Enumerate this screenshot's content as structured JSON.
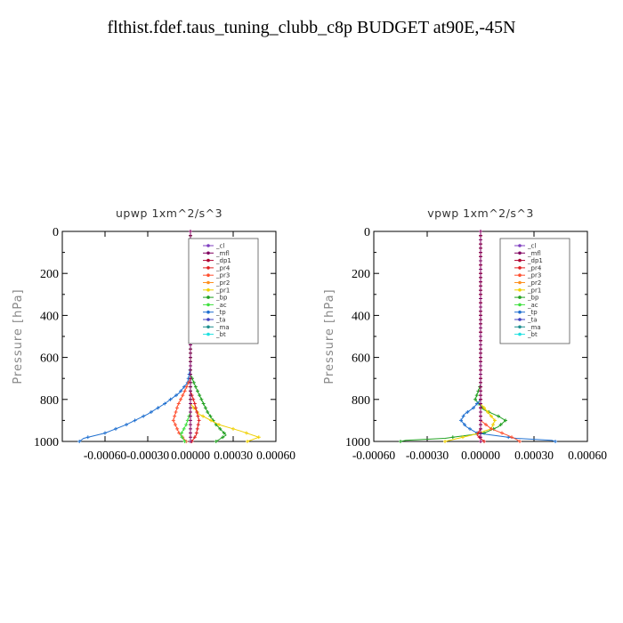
{
  "page_title": "flthist.fdef.taus_tuning_clubb_c8p  BUDGET at90E,-45N",
  "colors": {
    "cl": "#8040c0",
    "mfl": "#800060",
    "dp1": "#b00030",
    "pr4": "#e02020",
    "pr3": "#ff5030",
    "pr2": "#ff9020",
    "pr1": "#f0d000",
    "bp": "#20a020",
    "ac": "#40e040",
    "tp": "#2070d0",
    "ta": "#4040c0",
    "ma": "#209090",
    "bt": "#20e0e0"
  },
  "chart_data": [
    {
      "type": "line",
      "title": "upwp   1xm^2/s^3",
      "ylabel": "Pressure [hPa]",
      "ylim": [
        1000,
        0
      ],
      "xlim": [
        -0.0009,
        0.0006
      ],
      "y_ticks": [
        "0",
        "200",
        "400",
        "600",
        "800",
        "1000"
      ],
      "x_ticks": [
        "-0.00060",
        "-0.00030",
        "0.00000",
        "0.00030",
        "0.00060"
      ],
      "legend": [
        "_cl",
        "_mfl",
        "_dp1",
        "_pr4",
        "_pr3",
        "_pr2",
        "_pr1",
        "_bp",
        "_ac",
        "_tp",
        "_ta",
        "_ma",
        "_bt"
      ],
      "series": [
        {
          "name": "_tp",
          "color": "#2070d0",
          "points": [
            [
              0,
              0
            ],
            [
              0,
              650
            ],
            [
              -2e-05,
              720
            ],
            [
              -8e-05,
              770
            ],
            [
              -0.00018,
              820
            ],
            [
              -0.0003,
              870
            ],
            [
              -0.00045,
              920
            ],
            [
              -0.0006,
              960
            ],
            [
              -0.00075,
              985
            ],
            [
              -0.00078,
              1000
            ]
          ]
        },
        {
          "name": "_bp",
          "color": "#20a020",
          "points": [
            [
              0,
              0
            ],
            [
              0,
              680
            ],
            [
              3e-05,
              730
            ],
            [
              7e-05,
              790
            ],
            [
              0.00012,
              860
            ],
            [
              0.00018,
              920
            ],
            [
              0.00025,
              970
            ],
            [
              0.00018,
              1000
            ]
          ]
        },
        {
          "name": "_pr1",
          "color": "#f0d000",
          "points": [
            [
              0,
              0
            ],
            [
              0,
              820
            ],
            [
              6e-05,
              870
            ],
            [
              0.0002,
              920
            ],
            [
              0.00035,
              950
            ],
            [
              0.00048,
              980
            ],
            [
              0.0004,
              1000
            ]
          ]
        },
        {
          "name": "_pr3",
          "color": "#ff5030",
          "points": [
            [
              0,
              0
            ],
            [
              0,
              700
            ],
            [
              -4e-05,
              760
            ],
            [
              -9e-05,
              830
            ],
            [
              -0.00012,
              900
            ],
            [
              -8e-05,
              960
            ],
            [
              -3e-05,
              1000
            ]
          ]
        },
        {
          "name": "_pr4",
          "color": "#e02020",
          "points": [
            [
              0,
              0
            ],
            [
              0,
              760
            ],
            [
              3e-05,
              820
            ],
            [
              6e-05,
              900
            ],
            [
              4e-05,
              970
            ],
            [
              1e-05,
              1000
            ]
          ]
        },
        {
          "name": "_ac",
          "color": "#40e040",
          "points": [
            [
              0,
              0
            ],
            [
              0,
              860
            ],
            [
              -3e-05,
              920
            ],
            [
              -7e-05,
              970
            ],
            [
              -4e-05,
              1000
            ]
          ]
        },
        {
          "name": "_mfl",
          "color": "#800060",
          "points": [
            [
              0,
              0
            ],
            [
              0,
              1000
            ]
          ]
        }
      ]
    },
    {
      "type": "line",
      "title": "vpwp   1xm^2/s^3",
      "ylabel": "Pressure [hPa]",
      "ylim": [
        1000,
        0
      ],
      "xlim": [
        -0.0006,
        0.0006
      ],
      "y_ticks": [
        "0",
        "200",
        "400",
        "600",
        "800",
        "1000"
      ],
      "x_ticks": [
        "-0.00060",
        "-0.00030",
        "0.00000",
        "0.00030",
        "0.00060"
      ],
      "legend": [
        "_cl",
        "_mfl",
        "_dp1",
        "_pr4",
        "_pr3",
        "_pr2",
        "_pr1",
        "_bp",
        "_ac",
        "_tp",
        "_ta",
        "_ma",
        "_bt"
      ],
      "series": [
        {
          "name": "_bp",
          "color": "#20a020",
          "points": [
            [
              0,
              0
            ],
            [
              0,
              730
            ],
            [
              -3e-05,
              800
            ],
            [
              2e-05,
              850
            ],
            [
              0.0001,
              880
            ],
            [
              0.00014,
              900
            ],
            [
              0.0001,
              930
            ],
            [
              2e-05,
              960
            ],
            [
              -0.0002,
              985
            ],
            [
              -0.00042,
              995
            ],
            [
              -0.00045,
              1000
            ]
          ]
        },
        {
          "name": "_tp",
          "color": "#2070d0",
          "points": [
            [
              0,
              0
            ],
            [
              0,
              800
            ],
            [
              -4e-05,
              840
            ],
            [
              -9e-05,
              870
            ],
            [
              -0.00011,
              900
            ],
            [
              -8e-05,
              930
            ],
            [
              -2e-05,
              960
            ],
            [
              0.0002,
              985
            ],
            [
              0.0004,
              995
            ],
            [
              0.00042,
              1000
            ]
          ]
        },
        {
          "name": "_pr1",
          "color": "#f0d000",
          "points": [
            [
              0,
              0
            ],
            [
              0,
              820
            ],
            [
              4e-05,
              860
            ],
            [
              8e-05,
              900
            ],
            [
              6e-05,
              940
            ],
            [
              -5e-05,
              970
            ],
            [
              -0.00015,
              990
            ],
            [
              -0.0002,
              1000
            ]
          ]
        },
        {
          "name": "_pr3",
          "color": "#ff5030",
          "points": [
            [
              0,
              0
            ],
            [
              0,
              900
            ],
            [
              6e-05,
              940
            ],
            [
              0.00015,
              970
            ],
            [
              0.0002,
              990
            ],
            [
              0.00022,
              1000
            ]
          ]
        },
        {
          "name": "_pr4",
          "color": "#e02020",
          "points": [
            [
              0,
              0
            ],
            [
              0,
              940
            ],
            [
              -2e-05,
              970
            ],
            [
              2e-05,
              1000
            ]
          ]
        },
        {
          "name": "_mfl",
          "color": "#800060",
          "points": [
            [
              0,
              0
            ],
            [
              0,
              1000
            ]
          ]
        }
      ]
    }
  ]
}
